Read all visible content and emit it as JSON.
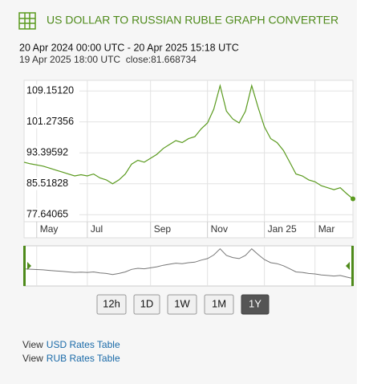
{
  "header": {
    "title": "US DOLLAR TO RUSSIAN RUBLE GRAPH CONVERTER"
  },
  "range": "20 Apr 2024 00:00 UTC - 20 Apr 2025 15:18 UTC",
  "info": "19 Apr 2025 18:00 UTC  close:81.668734",
  "chart_data": {
    "type": "line",
    "categories": [
      null,
      null,
      "May",
      null,
      null,
      null,
      null,
      null,
      null,
      null,
      "Jul",
      null,
      null,
      null,
      null,
      null,
      null,
      null,
      null,
      null,
      "Sep",
      null,
      null,
      null,
      null,
      null,
      null,
      null,
      null,
      "Nov",
      null,
      null,
      null,
      null,
      null,
      null,
      null,
      null,
      "Jan 25",
      null,
      null,
      null,
      null,
      null,
      null,
      null,
      "Mar",
      null,
      null,
      null,
      null,
      null,
      null
    ],
    "values": [
      91.0,
      90.6,
      90.3,
      90.0,
      89.5,
      89.0,
      88.5,
      88.0,
      87.5,
      87.8,
      87.5,
      88.0,
      87.0,
      86.5,
      85.5,
      86.5,
      88.0,
      90.5,
      91.5,
      91.0,
      92.0,
      93.0,
      94.5,
      95.5,
      96.5,
      96.0,
      97.0,
      97.5,
      99.5,
      101.0,
      104.5,
      110.5,
      104.0,
      102.0,
      101.0,
      104.0,
      110.5,
      105.0,
      100.0,
      97.0,
      96.0,
      94.0,
      91.0,
      88.0,
      87.5,
      86.5,
      86.0,
      85.0,
      84.5,
      84.0,
      84.5,
      83.0,
      81.668734
    ],
    "color": "#5a9a1e",
    "ylim": [
      75.84,
      111.85
    ],
    "yticks": [
      77.64065,
      85.51828,
      93.39592,
      101.27356,
      {
        "value": 109.1512,
        "label": "109.15120"
      }
    ],
    "grid": true
  },
  "buttons": [
    {
      "label": "12h",
      "active": false
    },
    {
      "label": "1D",
      "active": false
    },
    {
      "label": "1W",
      "active": false
    },
    {
      "label": "1M",
      "active": false
    },
    {
      "label": "1Y",
      "active": true
    }
  ],
  "links": [
    {
      "prefix": "View",
      "text": "USD Rates Table"
    },
    {
      "prefix": "View",
      "text": "RUB Rates Table"
    }
  ]
}
